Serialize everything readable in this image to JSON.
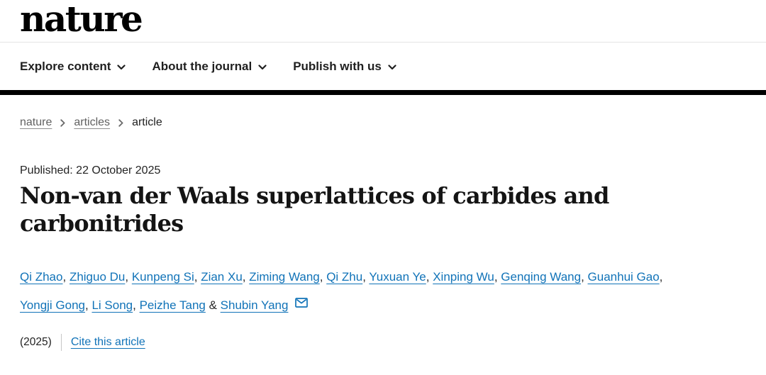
{
  "header": {
    "logo_text": "nature",
    "nav_items": [
      {
        "label": "Explore content"
      },
      {
        "label": "About the journal"
      },
      {
        "label": "Publish with us"
      }
    ]
  },
  "breadcrumb": {
    "items": [
      "nature",
      "articles",
      "article"
    ]
  },
  "article": {
    "published": "Published: 22 October 2025",
    "title": "Non-van der Waals superlattices of carbides and carbonitrides",
    "authors": [
      "Qi Zhao",
      "Zhiguo Du",
      "Kunpeng Si",
      "Zian Xu",
      "Ziming Wang",
      "Qi Zhu",
      "Yuxuan Ye",
      "Xinping Wu",
      "Genqing Wang",
      "Guanhui Gao",
      "Yongji Gong",
      "Li Song",
      "Peizhe Tang",
      "Shubin Yang"
    ],
    "author_separator": ",",
    "author_separator_last": "&",
    "year": "(2025)",
    "cite_label": "Cite this article"
  },
  "icons": {
    "nav_chevron": "chevron-down-icon",
    "breadcrumb_separator": "chevron-right-icon",
    "corresponding_author": "email-icon"
  },
  "colors": {
    "link_blue": "#1173b8",
    "breadcrumb_link": "#616161",
    "text_dark": "#222222",
    "top_bar": "#000000"
  }
}
